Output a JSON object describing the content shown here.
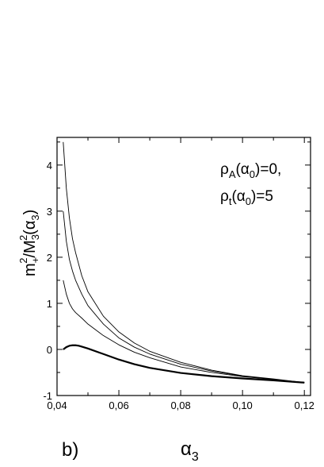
{
  "chart_data": {
    "type": "line",
    "panel_label": "b)",
    "xlabel_base": "α",
    "xlabel_sub": "3",
    "ylabel_parts": {
      "m": "m",
      "m_sub": "+",
      "m_sup": "2",
      "slash": "/M",
      "M_sub": "3",
      "M_sup": "2",
      "arg_open": "(α",
      "arg_sub": "3",
      "arg_close": ")"
    },
    "annotation_lines": [
      {
        "rho": "ρ",
        "rho_sub": "A",
        "arg_open": "(α",
        "arg_sub": "0",
        "rest": ")=0,"
      },
      {
        "rho": "ρ",
        "rho_sub": "t",
        "arg_open": "(α",
        "arg_sub": "0",
        "rest": ")=5"
      }
    ],
    "xlim": [
      0.04,
      0.122
    ],
    "ylim": [
      -1,
      4.6
    ],
    "x_ticks": [
      0.04,
      0.06,
      0.08,
      0.1,
      0.12
    ],
    "x_tick_labels": [
      "0,04",
      "0,06",
      "0,08",
      "0,10",
      "0,12"
    ],
    "y_ticks": [
      -1,
      0,
      1,
      2,
      3,
      4
    ],
    "y_tick_labels": [
      "-1",
      "0",
      "1",
      "2",
      "3",
      "4"
    ],
    "grid": false,
    "series": [
      {
        "style": "thick",
        "x": [
          0.042,
          0.043,
          0.044,
          0.045,
          0.046,
          0.047,
          0.048,
          0.05,
          0.055,
          0.06,
          0.065,
          0.07,
          0.08,
          0.09,
          0.1,
          0.11,
          0.12
        ],
        "y": [
          0.0,
          0.05,
          0.08,
          0.09,
          0.09,
          0.08,
          0.06,
          0.02,
          -0.1,
          -0.22,
          -0.32,
          -0.4,
          -0.51,
          -0.58,
          -0.63,
          -0.67,
          -0.72
        ]
      },
      {
        "style": "thin",
        "x": [
          0.042,
          0.043,
          0.044,
          0.045,
          0.046,
          0.048,
          0.05,
          0.055,
          0.06,
          0.065,
          0.07,
          0.08,
          0.09,
          0.1,
          0.11,
          0.12
        ],
        "y": [
          1.5,
          1.2,
          1.0,
          0.88,
          0.8,
          0.68,
          0.55,
          0.3,
          0.1,
          -0.06,
          -0.18,
          -0.38,
          -0.5,
          -0.59,
          -0.65,
          -0.72
        ]
      },
      {
        "style": "thin",
        "x": [
          0.042,
          0.043,
          0.044,
          0.045,
          0.046,
          0.048,
          0.05,
          0.055,
          0.06,
          0.065,
          0.07,
          0.08,
          0.09,
          0.1,
          0.11,
          0.12
        ],
        "y": [
          3.0,
          2.35,
          1.95,
          1.7,
          1.5,
          1.2,
          0.95,
          0.55,
          0.25,
          0.05,
          -0.1,
          -0.32,
          -0.47,
          -0.58,
          -0.65,
          -0.72
        ]
      },
      {
        "style": "thin",
        "x": [
          0.042,
          0.043,
          0.044,
          0.045,
          0.046,
          0.048,
          0.05,
          0.055,
          0.06,
          0.065,
          0.07,
          0.08,
          0.09,
          0.1,
          0.11,
          0.12
        ],
        "y": [
          4.5,
          3.5,
          2.85,
          2.4,
          2.1,
          1.6,
          1.25,
          0.72,
          0.38,
          0.14,
          -0.04,
          -0.28,
          -0.45,
          -0.57,
          -0.64,
          -0.72
        ]
      }
    ]
  }
}
